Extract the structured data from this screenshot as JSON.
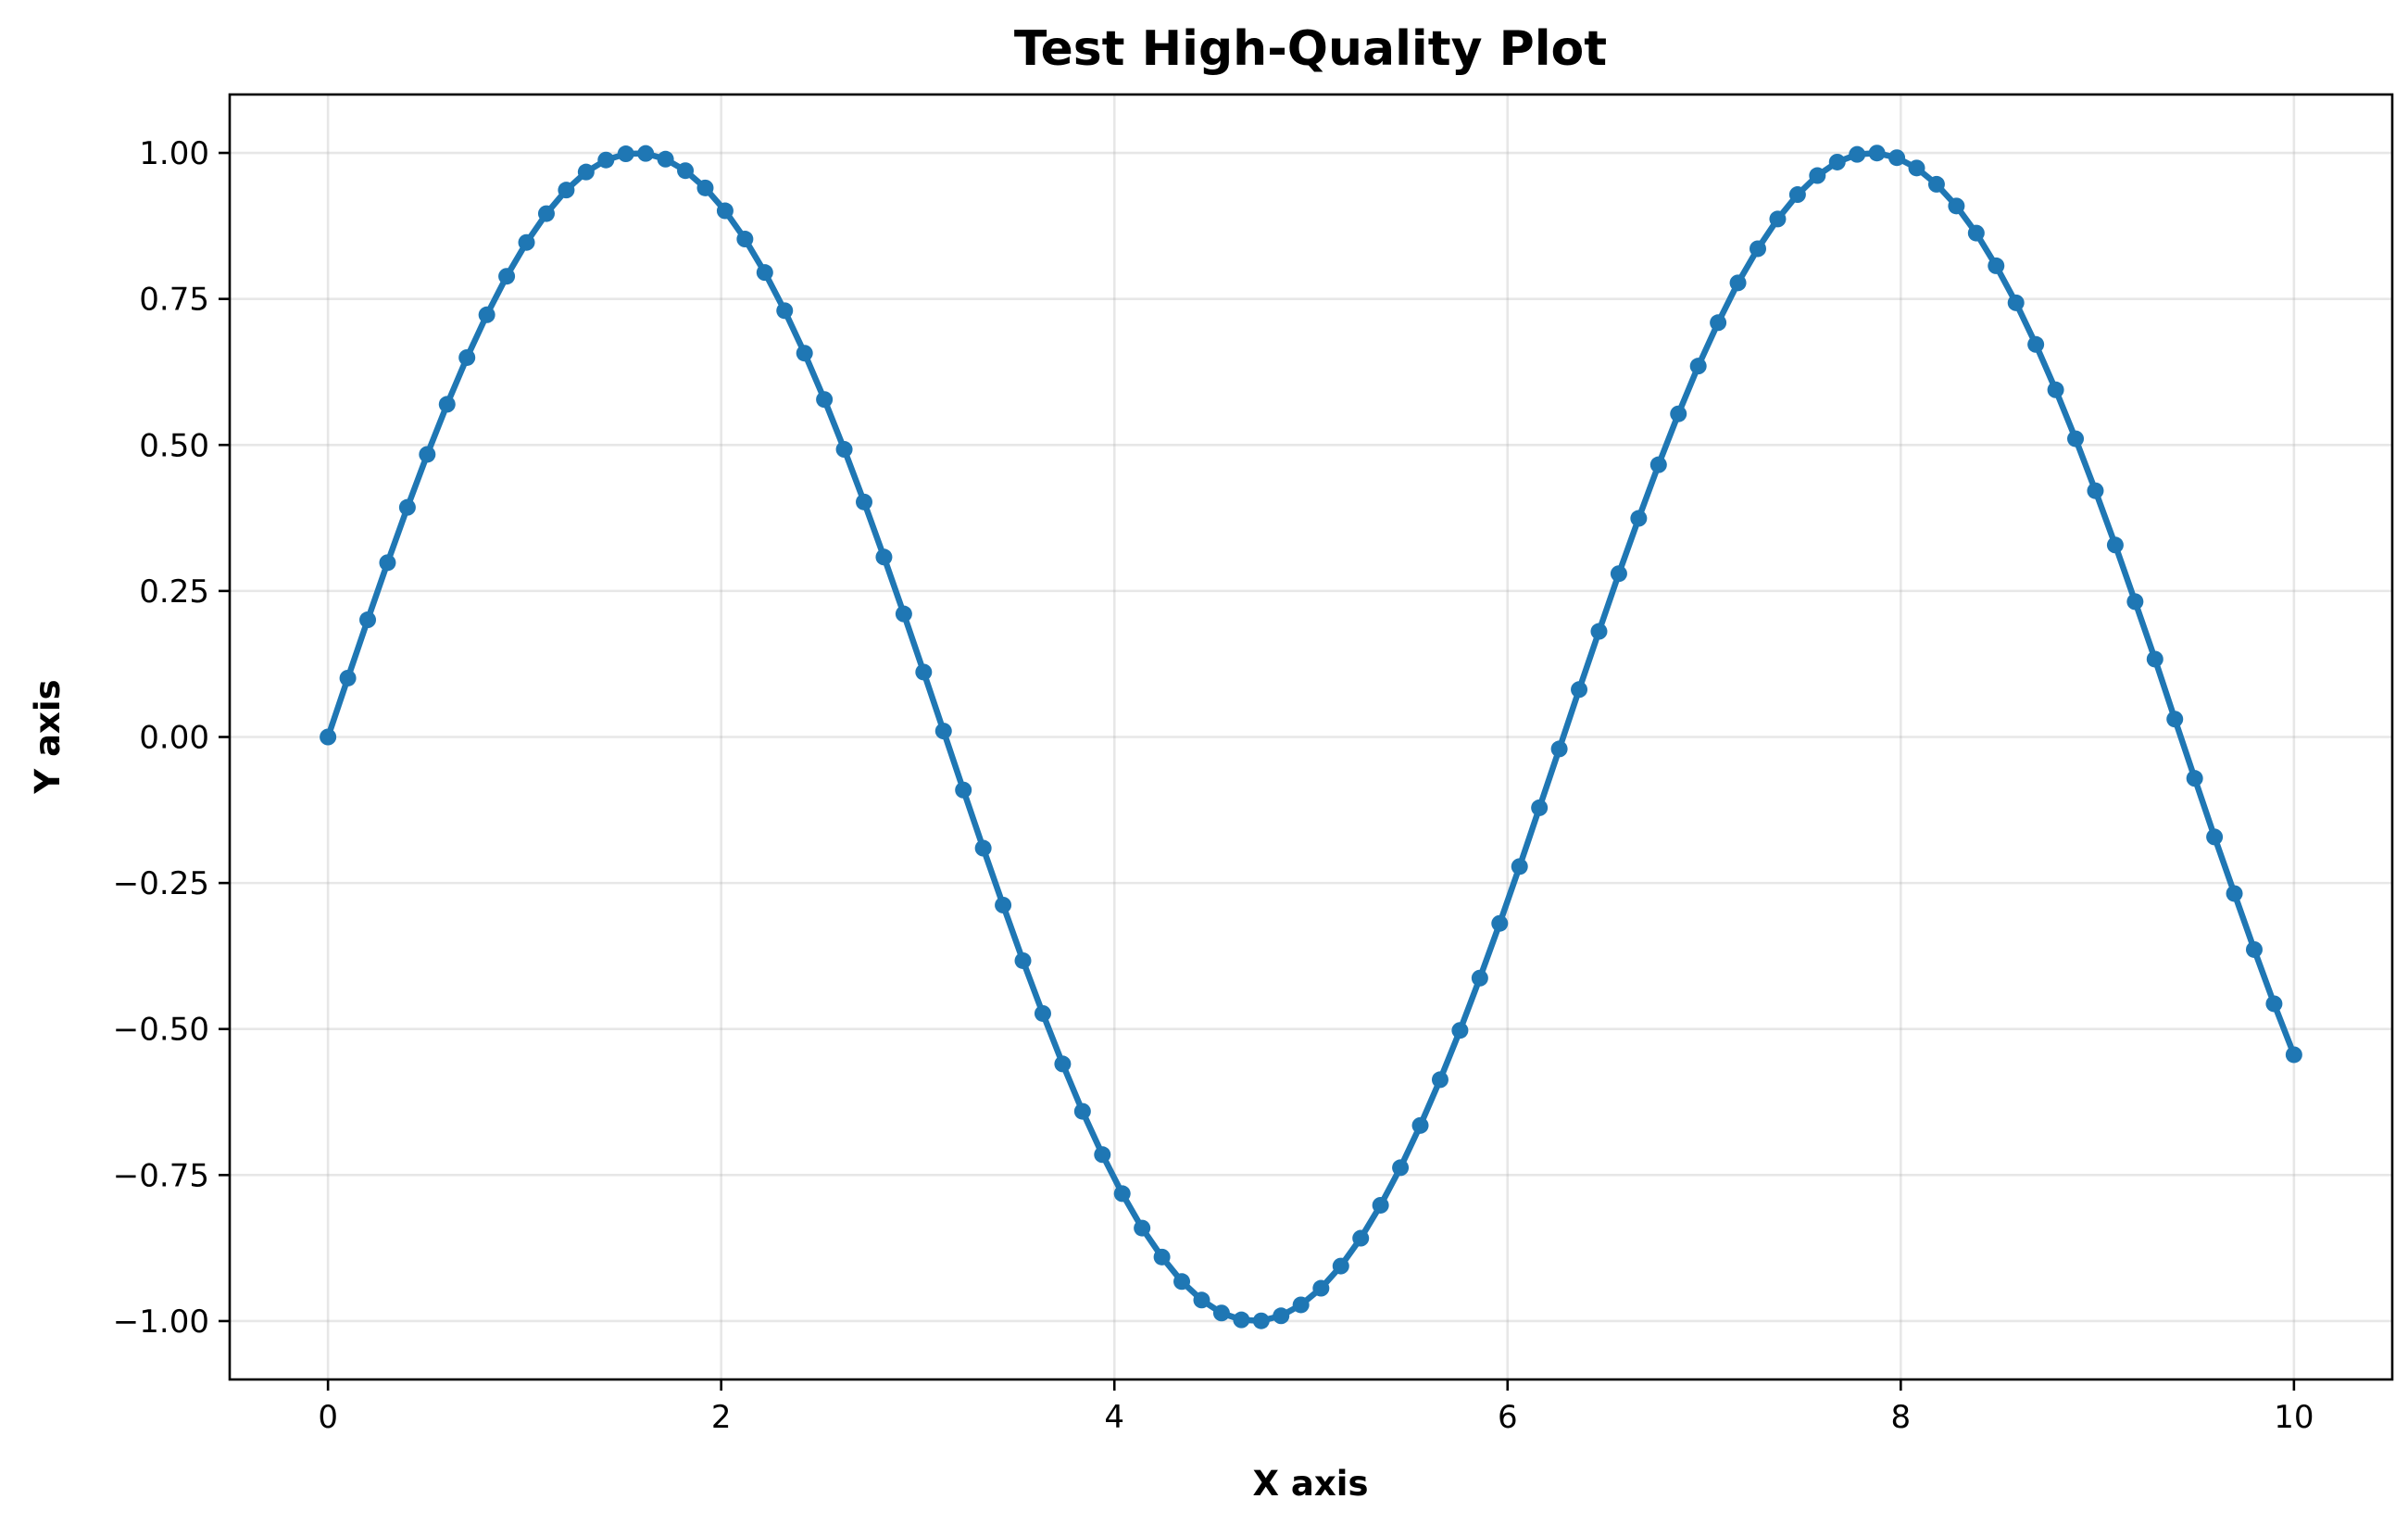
{
  "chart_data": {
    "type": "line",
    "title": "Test High-Quality Plot",
    "xlabel": "X axis",
    "ylabel": "Y axis",
    "xlim": [
      -0.5,
      10.5
    ],
    "ylim": [
      -1.1,
      1.1
    ],
    "xticks": [
      0,
      2,
      4,
      6,
      8,
      10
    ],
    "xtick_labels": [
      "0",
      "2",
      "4",
      "6",
      "8",
      "10"
    ],
    "yticks": [
      -1.0,
      -0.75,
      -0.5,
      -0.25,
      0.0,
      0.25,
      0.5,
      0.75,
      1.0
    ],
    "ytick_labels": [
      "−1.00",
      "−0.75",
      "−0.50",
      "−0.25",
      "0.00",
      "0.25",
      "0.50",
      "0.75",
      "1.00"
    ],
    "grid": true,
    "legend": "none",
    "series": [
      {
        "color": "#1f77b4",
        "marker": "circle",
        "x": [
          0.0,
          0.101,
          0.202,
          0.303,
          0.404,
          0.505,
          0.606,
          0.707,
          0.808,
          0.909,
          1.01,
          1.111,
          1.212,
          1.313,
          1.414,
          1.515,
          1.616,
          1.717,
          1.818,
          1.919,
          2.02,
          2.121,
          2.222,
          2.323,
          2.424,
          2.525,
          2.626,
          2.727,
          2.828,
          2.929,
          3.03,
          3.131,
          3.232,
          3.333,
          3.434,
          3.535,
          3.636,
          3.737,
          3.838,
          3.939,
          4.04,
          4.141,
          4.242,
          4.343,
          4.444,
          4.545,
          4.646,
          4.747,
          4.848,
          4.949,
          5.051,
          5.152,
          5.253,
          5.354,
          5.455,
          5.556,
          5.657,
          5.758,
          5.859,
          5.96,
          6.061,
          6.162,
          6.263,
          6.364,
          6.465,
          6.566,
          6.667,
          6.768,
          6.869,
          6.97,
          7.071,
          7.172,
          7.273,
          7.374,
          7.475,
          7.576,
          7.677,
          7.778,
          7.879,
          7.98,
          8.081,
          8.182,
          8.283,
          8.384,
          8.485,
          8.586,
          8.687,
          8.788,
          8.889,
          8.99,
          9.091,
          9.192,
          9.293,
          9.394,
          9.495,
          9.596,
          9.697,
          9.798,
          9.899,
          10.0
        ],
        "y": [
          0.0,
          0.1008,
          0.2006,
          0.2984,
          0.3931,
          0.4838,
          0.5696,
          0.6496,
          0.7228,
          0.7888,
          0.8467,
          0.896,
          0.9364,
          0.9673,
          0.9878,
          0.9984,
          0.999,
          0.9893,
          0.9696,
          0.94,
          0.9009,
          0.8525,
          0.7952,
          0.7299,
          0.6571,
          0.5778,
          0.4924,
          0.4023,
          0.3081,
          0.2107,
          0.1111,
          0.0102,
          -0.0908,
          -0.1904,
          -0.2878,
          -0.383,
          -0.4734,
          -0.5598,
          -0.641,
          -0.715,
          -0.7818,
          -0.8408,
          -0.8904,
          -0.9323,
          -0.964,
          -0.9862,
          -0.9979,
          -0.9996,
          -0.991,
          -0.9723,
          -0.9438,
          -0.9058,
          -0.8582,
          -0.8017,
          -0.7374,
          -0.6651,
          -0.5867,
          -0.5024,
          -0.4128,
          -0.3192,
          -0.2218,
          -0.1212,
          -0.0205,
          0.0812,
          0.1808,
          0.2796,
          0.3743,
          0.4661,
          0.5532,
          0.635,
          0.7094,
          0.7775,
          0.836,
          0.8868,
          0.9286,
          0.9612,
          0.9843,
          0.9974,
          0.9997,
          0.9918,
          0.9741,
          0.9463,
          0.9091,
          0.8627,
          0.8067,
          0.7434,
          0.6721,
          0.5944,
          0.5106,
          0.4216,
          0.3287,
          0.2317,
          0.1333,
          0.0306,
          -0.0708,
          -0.1712,
          -0.268,
          -0.364,
          -0.4568,
          -0.544
        ]
      }
    ]
  }
}
